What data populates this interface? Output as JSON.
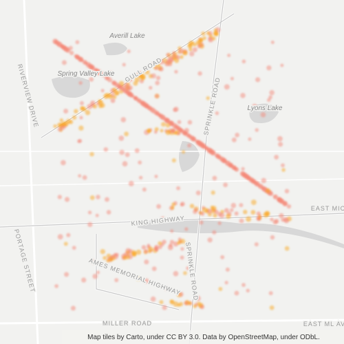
{
  "labels": [
    "Averill Lake",
    "Spring Valley Lake",
    "GULL ROAD",
    "SPRINKLE ROAD",
    "Lyons Lake",
    "RIVERVIEW DRIVE",
    "KING HIGHWAY",
    "EAST MIC",
    "PORTAGE STREET",
    "AMES MEMORIAL HIGHWAY",
    "SPRINKLE ROAD",
    "MILLER ROAD",
    "EAST ML AVE"
  ],
  "attribution": "Map tiles by Carto, under CC BY 3.0. Data by OpenStreetMap, under ODbL."
}
